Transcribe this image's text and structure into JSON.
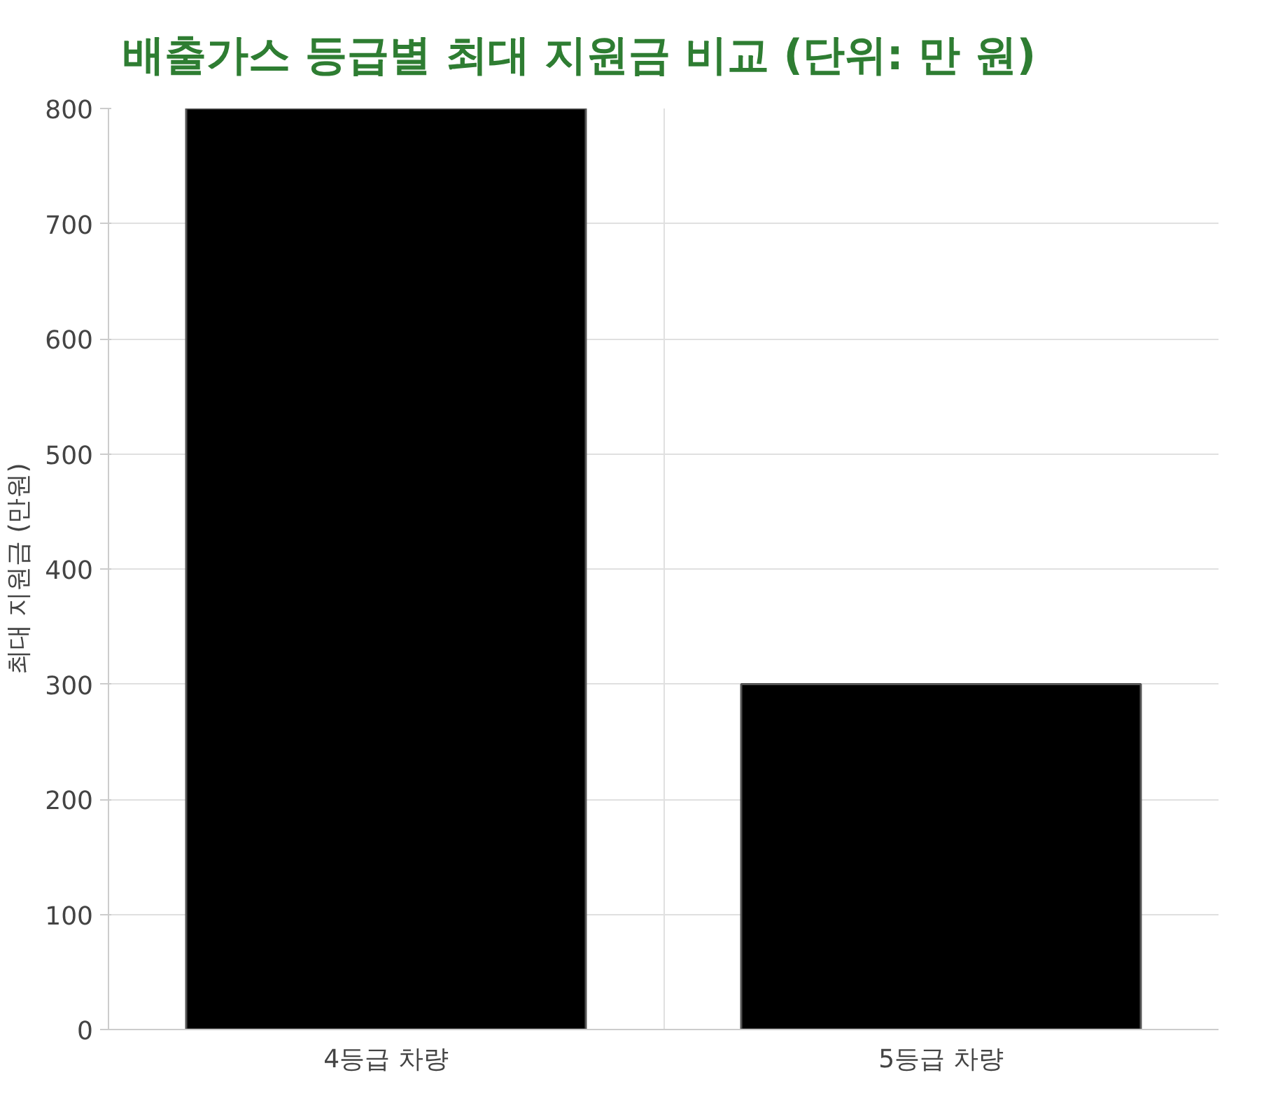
{
  "chart_data": {
    "type": "bar",
    "title": "배출가스 등급별 최대 지원금 비교 (단위: 만 원)",
    "ylabel": "최대 지원금 (만원)",
    "categories": [
      "4등급 차량",
      "5등급 차량"
    ],
    "series": [
      {
        "color": "#000000",
        "values": [
          800,
          300
        ]
      }
    ],
    "ylim": [
      0,
      800
    ],
    "yticks": [
      0,
      100,
      200,
      300,
      400,
      500,
      600,
      700,
      800
    ],
    "grid": true
  }
}
